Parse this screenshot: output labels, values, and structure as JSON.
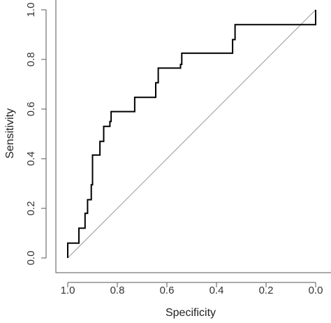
{
  "chart_data": {
    "type": "line",
    "xlabel": "Specificity",
    "ylabel": "Sensitivity",
    "x_reversed": true,
    "xlim": [
      1.05,
      -0.05
    ],
    "ylim": [
      -0.03,
      1.03
    ],
    "x_ticks": [
      1.0,
      0.8,
      0.6,
      0.4,
      0.2,
      0.0
    ],
    "x_tick_labels": [
      "1.0",
      "0.8",
      "0.6",
      "0.4",
      "0.2",
      "0.0"
    ],
    "y_ticks": [
      0.0,
      0.2,
      0.4,
      0.6,
      0.8,
      1.0
    ],
    "y_tick_labels": [
      "0.0",
      "0.2",
      "0.4",
      "0.6",
      "0.8",
      "1.0"
    ],
    "grid": false,
    "diagonal_reference": true,
    "series": [
      {
        "color": "#000000",
        "step": true,
        "x": [
          1.0,
          1.0,
          0.955,
          0.955,
          0.93,
          0.93,
          0.92,
          0.92,
          0.905,
          0.905,
          0.9,
          0.9,
          0.87,
          0.87,
          0.855,
          0.855,
          0.83,
          0.83,
          0.825,
          0.825,
          0.73,
          0.73,
          0.645,
          0.645,
          0.635,
          0.635,
          0.545,
          0.545,
          0.54,
          0.54,
          0.335,
          0.335,
          0.325,
          0.325,
          0.0,
          0.0
        ],
        "y": [
          0.0,
          0.06,
          0.06,
          0.12,
          0.12,
          0.18,
          0.18,
          0.235,
          0.235,
          0.295,
          0.295,
          0.415,
          0.415,
          0.47,
          0.47,
          0.53,
          0.53,
          0.55,
          0.55,
          0.59,
          0.59,
          0.647,
          0.647,
          0.706,
          0.706,
          0.765,
          0.765,
          0.78,
          0.78,
          0.825,
          0.825,
          0.88,
          0.88,
          0.94,
          0.94,
          1.0
        ]
      }
    ],
    "reference_line_color": "#9a9a9a"
  }
}
